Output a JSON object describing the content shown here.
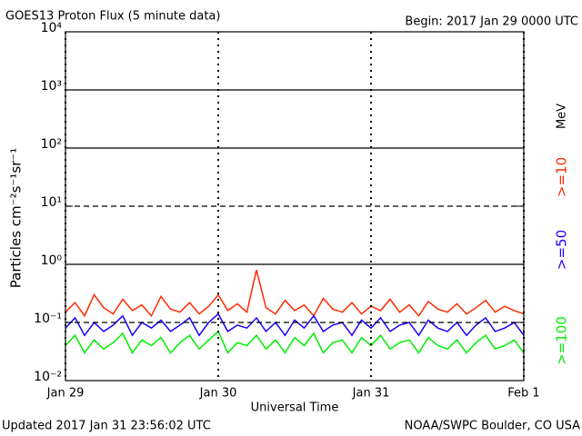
{
  "chart_data": {
    "type": "line",
    "title": "GOES13 Proton Flux (5 minute data)",
    "subtitle": "Begin: 2017 Jan 29 0000 UTC",
    "y_label": "Particles cm⁻²s⁻¹sr⁻¹",
    "x_label": "Universal Time",
    "footer_left": "Updated 2017 Jan 31 23:56:02 UTC",
    "footer_right": "NOAA/SWPC Boulder, CO USA",
    "legend_unit": "MeV",
    "log_scale_y": true,
    "x": [
      0,
      1.5,
      3,
      4.5,
      6,
      7.5,
      9,
      10.5,
      12,
      13.5,
      15,
      16.5,
      18,
      19.5,
      21,
      22.5,
      24,
      25.5,
      27,
      28.5,
      30,
      31.5,
      33,
      34.5,
      36,
      37.5,
      39,
      40.5,
      42,
      43.5,
      45,
      46.5,
      48,
      49.5,
      51,
      52.5,
      54,
      55.5,
      57,
      58.5,
      60,
      61.5,
      63,
      64.5,
      66,
      67.5,
      69,
      70.5,
      72
    ],
    "xlim": [
      0,
      72
    ],
    "xticks": [
      {
        "value": 0,
        "label": "Jan 29"
      },
      {
        "value": 24,
        "label": "Jan 30"
      },
      {
        "value": 48,
        "label": "Jan 31"
      },
      {
        "value": 72,
        "label": "Feb 1"
      }
    ],
    "ylim": [
      0.01,
      10000
    ],
    "yticks": [
      {
        "value": 0.01,
        "label": "10⁻²"
      },
      {
        "value": 0.1,
        "label": "10⁻¹"
      },
      {
        "value": 1,
        "label": "10⁰"
      },
      {
        "value": 10,
        "label": "10¹"
      },
      {
        "value": 100,
        "label": "10²"
      },
      {
        "value": 1000,
        "label": "10³"
      },
      {
        "value": 10000,
        "label": "10⁴"
      }
    ],
    "grid_styles": [
      "none",
      "dashed",
      "solid",
      "dashed",
      "solid",
      "solid",
      "none"
    ],
    "series": [
      {
        "name": ">=10",
        "color": "#ff2a00",
        "values": [
          0.15,
          0.22,
          0.13,
          0.3,
          0.18,
          0.14,
          0.25,
          0.16,
          0.2,
          0.13,
          0.28,
          0.17,
          0.15,
          0.22,
          0.14,
          0.19,
          0.3,
          0.16,
          0.21,
          0.15,
          0.8,
          0.18,
          0.14,
          0.24,
          0.16,
          0.2,
          0.13,
          0.26,
          0.17,
          0.15,
          0.22,
          0.14,
          0.19,
          0.16,
          0.25,
          0.15,
          0.2,
          0.13,
          0.23,
          0.17,
          0.15,
          0.21,
          0.14,
          0.18,
          0.24,
          0.15,
          0.19,
          0.16,
          0.14
        ]
      },
      {
        "name": ">=50",
        "color": "#1a00ff",
        "values": [
          0.08,
          0.12,
          0.06,
          0.1,
          0.07,
          0.09,
          0.13,
          0.06,
          0.1,
          0.08,
          0.11,
          0.07,
          0.09,
          0.12,
          0.06,
          0.1,
          0.14,
          0.07,
          0.09,
          0.08,
          0.12,
          0.07,
          0.1,
          0.06,
          0.11,
          0.08,
          0.13,
          0.07,
          0.09,
          0.1,
          0.06,
          0.11,
          0.08,
          0.12,
          0.07,
          0.09,
          0.1,
          0.06,
          0.11,
          0.08,
          0.07,
          0.1,
          0.06,
          0.09,
          0.12,
          0.07,
          0.08,
          0.1,
          0.06
        ]
      },
      {
        "name": ">=100",
        "color": "#00ee00",
        "values": [
          0.04,
          0.06,
          0.03,
          0.05,
          0.035,
          0.045,
          0.065,
          0.03,
          0.05,
          0.04,
          0.055,
          0.03,
          0.045,
          0.06,
          0.035,
          0.05,
          0.07,
          0.03,
          0.045,
          0.04,
          0.06,
          0.035,
          0.05,
          0.03,
          0.055,
          0.04,
          0.065,
          0.03,
          0.045,
          0.05,
          0.03,
          0.055,
          0.04,
          0.06,
          0.035,
          0.045,
          0.05,
          0.03,
          0.055,
          0.04,
          0.035,
          0.05,
          0.03,
          0.045,
          0.06,
          0.035,
          0.04,
          0.05,
          0.03
        ]
      }
    ]
  }
}
